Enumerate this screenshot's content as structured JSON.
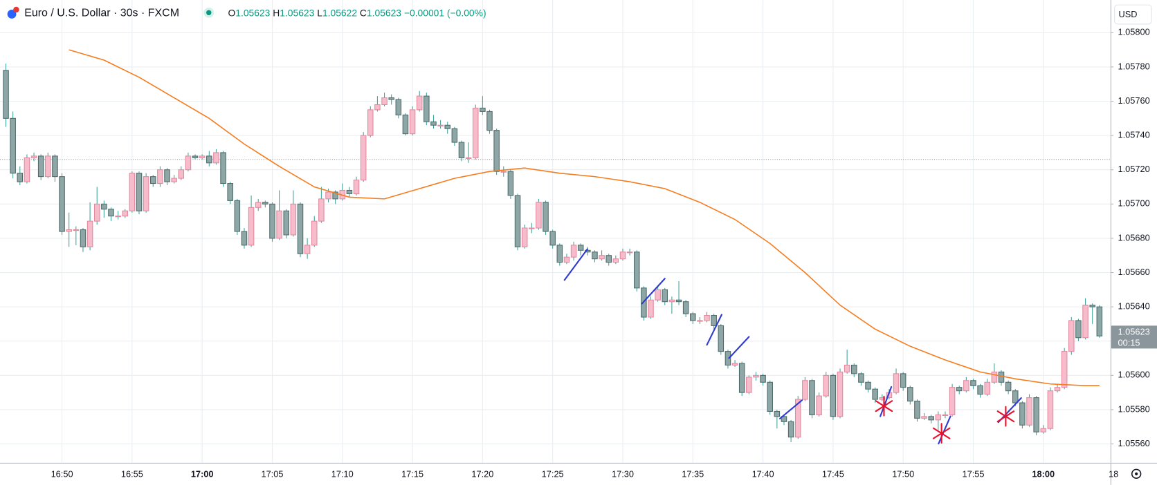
{
  "chart_data": {
    "type": "candlestick",
    "title": "Euro / U.S. Dollar · 30s · FXCM",
    "legend_values": {
      "labels": [
        "O",
        "H",
        "L",
        "C"
      ],
      "values": [
        "1.05623",
        "1.05623",
        "1.05622",
        "1.05623"
      ],
      "change": "−0.00001 (−0.00%)"
    },
    "currency": "USD",
    "up_color": "#f7bccb",
    "up_border": "#e2899e",
    "down_color": "#8fa6a6",
    "down_border": "#4d6b6b",
    "wick_color": "#3ea39a",
    "ma": {
      "color": "#f57c1f",
      "x": [
        9,
        14,
        19,
        24,
        29,
        34,
        39,
        44,
        49,
        54,
        59,
        64,
        69,
        74,
        79,
        84,
        89,
        94,
        99,
        104,
        109,
        114,
        119,
        124,
        129,
        134,
        139,
        144,
        149,
        154,
        156
      ],
      "values": [
        1.0579,
        1.05784,
        1.05774,
        1.05762,
        1.0575,
        1.05735,
        1.05722,
        1.0571,
        1.05704,
        1.05703,
        1.05709,
        1.05715,
        1.05719,
        1.05721,
        1.05718,
        1.05716,
        1.05713,
        1.05709,
        1.05701,
        1.05691,
        1.05677,
        1.0566,
        1.05641,
        1.05627,
        1.05617,
        1.05609,
        1.05602,
        1.05598,
        1.05595,
        1.05594,
        1.05594
      ]
    },
    "dotted_line": 1.05726,
    "last_price": {
      "value": 1.05623,
      "label": "1.05623",
      "countdown": "00:15"
    },
    "ylim": [
      1.05549,
      1.05819
    ],
    "yticks": [
      {
        "value": 1.0556,
        "label": "1.05560"
      },
      {
        "value": 1.0558,
        "label": "1.05580"
      },
      {
        "value": 1.056,
        "label": "1.05600"
      },
      {
        "value": 1.0562,
        "label": "1.05620"
      },
      {
        "value": 1.0564,
        "label": "1.05640"
      },
      {
        "value": 1.0566,
        "label": "1.05660"
      },
      {
        "value": 1.0568,
        "label": "1.05680"
      },
      {
        "value": 1.057,
        "label": "1.05700"
      },
      {
        "value": 1.0572,
        "label": "1.05720"
      },
      {
        "value": 1.0574,
        "label": "1.05740"
      },
      {
        "value": 1.0576,
        "label": "1.05760"
      },
      {
        "value": 1.0578,
        "label": "1.05780"
      },
      {
        "value": 1.058,
        "label": "1.05800"
      }
    ],
    "xticks": [
      {
        "value": 8,
        "label": "16:50"
      },
      {
        "value": 18,
        "label": "16:55"
      },
      {
        "value": 28,
        "label": "17:00"
      },
      {
        "value": 38,
        "label": "17:05"
      },
      {
        "value": 48,
        "label": "17:10"
      },
      {
        "value": 58,
        "label": "17:15"
      },
      {
        "value": 68,
        "label": "17:20"
      },
      {
        "value": 78,
        "label": "17:25"
      },
      {
        "value": 88,
        "label": "17:30"
      },
      {
        "value": 98,
        "label": "17:35"
      },
      {
        "value": 108,
        "label": "17:40"
      },
      {
        "value": 118,
        "label": "17:45"
      },
      {
        "value": 128,
        "label": "17:50"
      },
      {
        "value": 138,
        "label": "17:55"
      },
      {
        "value": 148,
        "label": "18:00"
      },
      {
        "value": 158,
        "label": "18"
      }
    ],
    "bold_xticks": [
      "17:00",
      "18:00"
    ],
    "grid": true,
    "candles": [
      [
        1.05778,
        1.05782,
        1.05745,
        1.0575
      ],
      [
        1.0575,
        1.05754,
        1.05715,
        1.05718
      ],
      [
        1.05718,
        1.05722,
        1.05711,
        1.05713
      ],
      [
        1.05713,
        1.05729,
        1.05712,
        1.05727
      ],
      [
        1.05727,
        1.0573,
        1.05725,
        1.05728
      ],
      [
        1.05728,
        1.05729,
        1.05714,
        1.05716
      ],
      [
        1.05716,
        1.0573,
        1.05715,
        1.05728
      ],
      [
        1.05728,
        1.05729,
        1.05713,
        1.05716
      ],
      [
        1.05716,
        1.05718,
        1.05682,
        1.05684
      ],
      [
        1.05684,
        1.05695,
        1.05675,
        1.05685
      ],
      [
        1.05685,
        1.05687,
        1.05676,
        1.05685
      ],
      [
        1.05685,
        1.05686,
        1.05672,
        1.05675
      ],
      [
        1.05675,
        1.05701,
        1.05673,
        1.0569
      ],
      [
        1.0569,
        1.0571,
        1.05688,
        1.057
      ],
      [
        1.057,
        1.05702,
        1.05692,
        1.05697
      ],
      [
        1.05697,
        1.05698,
        1.0569,
        1.05693
      ],
      [
        1.05693,
        1.05696,
        1.05691,
        1.05693
      ],
      [
        1.05693,
        1.05697,
        1.05692,
        1.05696
      ],
      [
        1.05696,
        1.05719,
        1.05695,
        1.05718
      ],
      [
        1.05718,
        1.05719,
        1.05694,
        1.05696
      ],
      [
        1.05696,
        1.05718,
        1.05695,
        1.05716
      ],
      [
        1.05716,
        1.05717,
        1.0571,
        1.05712
      ],
      [
        1.05712,
        1.05722,
        1.0571,
        1.0572
      ],
      [
        1.0572,
        1.05721,
        1.05711,
        1.05713
      ],
      [
        1.05713,
        1.05717,
        1.05712,
        1.05715
      ],
      [
        1.05715,
        1.05722,
        1.05714,
        1.0572
      ],
      [
        1.0572,
        1.0573,
        1.05719,
        1.05728
      ],
      [
        1.05728,
        1.05729,
        1.05726,
        1.05727
      ],
      [
        1.05727,
        1.05729,
        1.05726,
        1.05728
      ],
      [
        1.05728,
        1.05731,
        1.05722,
        1.05724
      ],
      [
        1.05724,
        1.05732,
        1.05723,
        1.0573
      ],
      [
        1.0573,
        1.05731,
        1.0571,
        1.05712
      ],
      [
        1.05712,
        1.05713,
        1.057,
        1.05702
      ],
      [
        1.05702,
        1.05703,
        1.05682,
        1.05684
      ],
      [
        1.05684,
        1.05686,
        1.05674,
        1.05676
      ],
      [
        1.05676,
        1.05705,
        1.05675,
        1.05698
      ],
      [
        1.05698,
        1.05703,
        1.05696,
        1.05701
      ],
      [
        1.05701,
        1.05702,
        1.05698,
        1.057
      ],
      [
        1.057,
        1.05701,
        1.05678,
        1.0568
      ],
      [
        1.0568,
        1.05708,
        1.05679,
        1.05696
      ],
      [
        1.05696,
        1.05697,
        1.0568,
        1.05682
      ],
      [
        1.05682,
        1.05708,
        1.05681,
        1.057
      ],
      [
        1.057,
        1.05701,
        1.05669,
        1.05671
      ],
      [
        1.05671,
        1.0568,
        1.05668,
        1.05676
      ],
      [
        1.05676,
        1.05693,
        1.05675,
        1.0569
      ],
      [
        1.0569,
        1.0571,
        1.05689,
        1.05703
      ],
      [
        1.05703,
        1.05709,
        1.05701,
        1.05707
      ],
      [
        1.05707,
        1.05708,
        1.057,
        1.05703
      ],
      [
        1.05703,
        1.05712,
        1.05702,
        1.05708
      ],
      [
        1.05708,
        1.0571,
        1.05704,
        1.05706
      ],
      [
        1.05706,
        1.05716,
        1.05705,
        1.05714
      ],
      [
        1.05714,
        1.05742,
        1.05713,
        1.0574
      ],
      [
        1.0574,
        1.05757,
        1.05739,
        1.05755
      ],
      [
        1.05755,
        1.05763,
        1.05754,
        1.05758
      ],
      [
        1.05758,
        1.05765,
        1.05757,
        1.05762
      ],
      [
        1.05762,
        1.05764,
        1.05758,
        1.05761
      ],
      [
        1.05761,
        1.05762,
        1.0575,
        1.05752
      ],
      [
        1.05752,
        1.05753,
        1.0574,
        1.05741
      ],
      [
        1.05741,
        1.05757,
        1.0574,
        1.05755
      ],
      [
        1.05755,
        1.05766,
        1.05754,
        1.05763
      ],
      [
        1.05763,
        1.05765,
        1.05746,
        1.05748
      ],
      [
        1.05748,
        1.05752,
        1.05744,
        1.05746
      ],
      [
        1.05746,
        1.05749,
        1.05744,
        1.05746
      ],
      [
        1.05746,
        1.05748,
        1.05741,
        1.05744
      ],
      [
        1.05744,
        1.05745,
        1.05734,
        1.05736
      ],
      [
        1.05736,
        1.05737,
        1.05725,
        1.05727
      ],
      [
        1.05727,
        1.05736,
        1.05724,
        1.05727
      ],
      [
        1.05727,
        1.05758,
        1.05726,
        1.05756
      ],
      [
        1.05756,
        1.05763,
        1.05752,
        1.05754
      ],
      [
        1.05754,
        1.05755,
        1.05741,
        1.05743
      ],
      [
        1.05743,
        1.05744,
        1.05717,
        1.05719
      ],
      [
        1.05719,
        1.05722,
        1.05716,
        1.05719
      ],
      [
        1.05719,
        1.0572,
        1.05703,
        1.05705
      ],
      [
        1.05705,
        1.05706,
        1.05673,
        1.05675
      ],
      [
        1.05675,
        1.05688,
        1.05674,
        1.05686
      ],
      [
        1.05686,
        1.05689,
        1.05683,
        1.05686
      ],
      [
        1.05686,
        1.05703,
        1.05685,
        1.05701
      ],
      [
        1.05701,
        1.05702,
        1.05682,
        1.05684
      ],
      [
        1.05684,
        1.05685,
        1.05674,
        1.05676
      ],
      [
        1.05676,
        1.05677,
        1.05664,
        1.05666
      ],
      [
        1.05666,
        1.05671,
        1.05665,
        1.05669
      ],
      [
        1.05669,
        1.05678,
        1.05667,
        1.05676
      ],
      [
        1.05676,
        1.05677,
        1.0567,
        1.05673
      ],
      [
        1.05673,
        1.05675,
        1.0567,
        1.05672
      ],
      [
        1.05672,
        1.05673,
        1.05666,
        1.05668
      ],
      [
        1.05668,
        1.05673,
        1.05667,
        1.0567
      ],
      [
        1.0567,
        1.05671,
        1.05664,
        1.05666
      ],
      [
        1.05666,
        1.0567,
        1.05665,
        1.05668
      ],
      [
        1.05668,
        1.05674,
        1.05667,
        1.05672
      ],
      [
        1.05672,
        1.05674,
        1.0567,
        1.05672
      ],
      [
        1.05672,
        1.05673,
        1.05649,
        1.05651
      ],
      [
        1.05651,
        1.05652,
        1.05632,
        1.05634
      ],
      [
        1.05634,
        1.05646,
        1.05633,
        1.05644
      ],
      [
        1.05644,
        1.05652,
        1.05643,
        1.0565
      ],
      [
        1.0565,
        1.05651,
        1.05641,
        1.05643
      ],
      [
        1.05643,
        1.05646,
        1.05636,
        1.05644
      ],
      [
        1.05644,
        1.05655,
        1.05641,
        1.05643
      ],
      [
        1.05643,
        1.05644,
        1.05634,
        1.05636
      ],
      [
        1.05636,
        1.05637,
        1.0563,
        1.05632
      ],
      [
        1.05632,
        1.05634,
        1.0563,
        1.05632
      ],
      [
        1.05632,
        1.05637,
        1.05631,
        1.05635
      ],
      [
        1.05635,
        1.05636,
        1.05627,
        1.05629
      ],
      [
        1.05629,
        1.0563,
        1.05612,
        1.05614
      ],
      [
        1.05614,
        1.05615,
        1.05604,
        1.05606
      ],
      [
        1.05606,
        1.05609,
        1.05605,
        1.05607
      ],
      [
        1.05607,
        1.05608,
        1.05588,
        1.0559
      ],
      [
        1.0559,
        1.056,
        1.05589,
        1.05599
      ],
      [
        1.05599,
        1.05602,
        1.05597,
        1.056
      ],
      [
        1.056,
        1.05601,
        1.05594,
        1.05596
      ],
      [
        1.05596,
        1.05597,
        1.05577,
        1.05579
      ],
      [
        1.05579,
        1.0558,
        1.05569,
        1.05576
      ],
      [
        1.05576,
        1.05577,
        1.05571,
        1.05573
      ],
      [
        1.05573,
        1.05574,
        1.05561,
        1.05564
      ],
      [
        1.05564,
        1.05588,
        1.05563,
        1.05586
      ],
      [
        1.05586,
        1.05599,
        1.05585,
        1.05597
      ],
      [
        1.05597,
        1.05598,
        1.05575,
        1.05577
      ],
      [
        1.05577,
        1.0559,
        1.05576,
        1.05588
      ],
      [
        1.05588,
        1.05602,
        1.05587,
        1.056
      ],
      [
        1.056,
        1.05601,
        1.05574,
        1.05576
      ],
      [
        1.05576,
        1.05604,
        1.05575,
        1.05602
      ],
      [
        1.05602,
        1.05615,
        1.05601,
        1.05606
      ],
      [
        1.05606,
        1.05607,
        1.05599,
        1.05601
      ],
      [
        1.05601,
        1.05602,
        1.05594,
        1.05596
      ],
      [
        1.05596,
        1.05597,
        1.0559,
        1.05592
      ],
      [
        1.05592,
        1.05593,
        1.05584,
        1.05586
      ],
      [
        1.05586,
        1.05589,
        1.05585,
        1.05587
      ],
      [
        1.05587,
        1.05592,
        1.05586,
        1.0559
      ],
      [
        1.0559,
        1.05604,
        1.05589,
        1.05601
      ],
      [
        1.05601,
        1.05602,
        1.05591,
        1.05593
      ],
      [
        1.05593,
        1.05594,
        1.05583,
        1.05585
      ],
      [
        1.05585,
        1.05586,
        1.05573,
        1.05575
      ],
      [
        1.05575,
        1.05578,
        1.05574,
        1.05576
      ],
      [
        1.05576,
        1.05577,
        1.05572,
        1.05574
      ],
      [
        1.05574,
        1.05579,
        1.05568,
        1.05577
      ],
      [
        1.05577,
        1.05579,
        1.05575,
        1.05577
      ],
      [
        1.05577,
        1.05595,
        1.05576,
        1.05593
      ],
      [
        1.05593,
        1.05594,
        1.05589,
        1.05591
      ],
      [
        1.05591,
        1.05599,
        1.0559,
        1.05597
      ],
      [
        1.05597,
        1.05598,
        1.05592,
        1.05594
      ],
      [
        1.05594,
        1.05595,
        1.05587,
        1.05589
      ],
      [
        1.05589,
        1.05598,
        1.05588,
        1.05596
      ],
      [
        1.05596,
        1.05607,
        1.05595,
        1.05602
      ],
      [
        1.05602,
        1.05603,
        1.05594,
        1.05596
      ],
      [
        1.05596,
        1.05597,
        1.05589,
        1.05591
      ],
      [
        1.05591,
        1.05592,
        1.05582,
        1.05584
      ],
      [
        1.05584,
        1.05585,
        1.05569,
        1.05571
      ],
      [
        1.05571,
        1.05589,
        1.0557,
        1.05587
      ],
      [
        1.05587,
        1.05588,
        1.05565,
        1.05567
      ],
      [
        1.05567,
        1.05571,
        1.05566,
        1.05569
      ],
      [
        1.05569,
        1.05593,
        1.05568,
        1.05591
      ],
      [
        1.05591,
        1.05595,
        1.0559,
        1.05593
      ],
      [
        1.05593,
        1.05616,
        1.05592,
        1.05614
      ],
      [
        1.05614,
        1.05634,
        1.05612,
        1.05632
      ],
      [
        1.05632,
        1.05633,
        1.0562,
        1.05622
      ],
      [
        1.05622,
        1.05645,
        1.05621,
        1.05641
      ],
      [
        1.05641,
        1.05642,
        1.0563,
        1.0564
      ],
      [
        1.0564,
        1.05641,
        1.05622,
        1.05623
      ]
    ]
  }
}
